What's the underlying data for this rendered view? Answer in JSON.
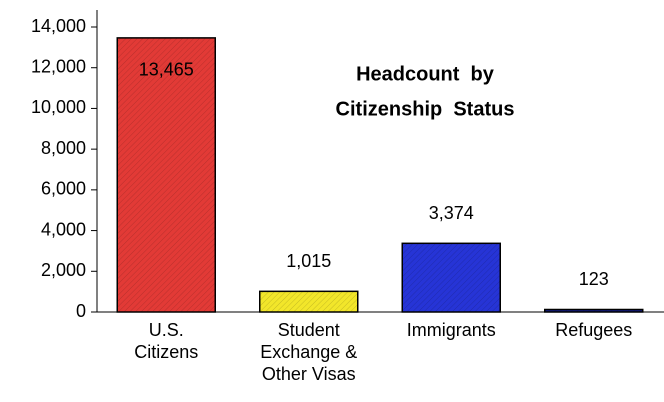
{
  "chart_data": {
    "type": "bar",
    "title": [
      "Headcount  by",
      "Citizenship  Status"
    ],
    "categories": [
      [
        "U.S.",
        "Citizens"
      ],
      [
        "Student",
        "Exchange &",
        "Other Visas"
      ],
      [
        "Immigrants"
      ],
      [
        "Refugees"
      ]
    ],
    "values": [
      13465,
      1015,
      3374,
      123
    ],
    "value_labels": [
      "13,465",
      "1,015",
      "3,374",
      "123"
    ],
    "colors": [
      "#e23a36",
      "#f2e62a",
      "#2634d6",
      "#141e8a"
    ],
    "ylim": [
      0,
      14000
    ],
    "yticks": [
      0,
      {
        "value": 2000,
        "label": "2,000"
      },
      {
        "value": 4000,
        "label": "4,000"
      },
      {
        "value": 6000,
        "label": "6,000"
      },
      {
        "value": 8000,
        "label": "8,000"
      },
      {
        "value": 10000,
        "label": "10,000"
      },
      {
        "value": 12000,
        "label": "12,000"
      },
      {
        "value": 14000,
        "label": "14,000"
      }
    ]
  }
}
